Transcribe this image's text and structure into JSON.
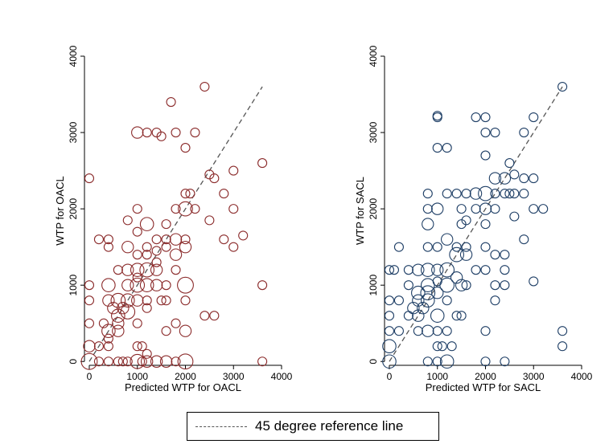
{
  "chart_data": [
    {
      "type": "scatter",
      "title": "",
      "xlabel": "Predicted WTP for OACL",
      "ylabel": "WTP for OACL",
      "xlim": [
        -100,
        4000
      ],
      "ylim": [
        -50,
        4000
      ],
      "xticks": [
        "0",
        "1000",
        "2000",
        "3000",
        "4000"
      ],
      "yticks": [
        "0",
        "1000",
        "2000",
        "3000",
        "4000"
      ],
      "marker": "hollow-circle-weighted",
      "color": "#8b2b2b",
      "grid": false,
      "reference_line": {
        "from": [
          0,
          0
        ],
        "to": [
          3600,
          3600
        ],
        "style": "dashed"
      },
      "points": [
        {
          "x": 0,
          "y": 2400,
          "r": 1
        },
        {
          "x": 1000,
          "y": 3000,
          "r": 1.3
        },
        {
          "x": 1200,
          "y": 3000,
          "r": 1
        },
        {
          "x": 1400,
          "y": 3000,
          "r": 1
        },
        {
          "x": 1500,
          "y": 2950,
          "r": 1
        },
        {
          "x": 1800,
          "y": 3000,
          "r": 1
        },
        {
          "x": 2200,
          "y": 3000,
          "r": 1
        },
        {
          "x": 1700,
          "y": 3400,
          "r": 1
        },
        {
          "x": 2400,
          "y": 3600,
          "r": 1
        },
        {
          "x": 3600,
          "y": 2600,
          "r": 1
        },
        {
          "x": 3000,
          "y": 2500,
          "r": 1
        },
        {
          "x": 2000,
          "y": 2800,
          "r": 1
        },
        {
          "x": 2600,
          "y": 2400,
          "r": 1
        },
        {
          "x": 2500,
          "y": 2450,
          "r": 1
        },
        {
          "x": 2000,
          "y": 2200,
          "r": 1
        },
        {
          "x": 2100,
          "y": 2200,
          "r": 1
        },
        {
          "x": 2800,
          "y": 2200,
          "r": 1
        },
        {
          "x": 1000,
          "y": 2000,
          "r": 1
        },
        {
          "x": 2000,
          "y": 2000,
          "r": 1.6
        },
        {
          "x": 1800,
          "y": 2000,
          "r": 1
        },
        {
          "x": 2200,
          "y": 2000,
          "r": 1
        },
        {
          "x": 3000,
          "y": 2000,
          "r": 1
        },
        {
          "x": 800,
          "y": 1850,
          "r": 1
        },
        {
          "x": 1200,
          "y": 1800,
          "r": 1.5
        },
        {
          "x": 1600,
          "y": 1800,
          "r": 1
        },
        {
          "x": 2500,
          "y": 1850,
          "r": 1
        },
        {
          "x": 1000,
          "y": 1700,
          "r": 1
        },
        {
          "x": 1400,
          "y": 1600,
          "r": 1
        },
        {
          "x": 1600,
          "y": 1600,
          "r": 1
        },
        {
          "x": 1800,
          "y": 1600,
          "r": 1.3
        },
        {
          "x": 2000,
          "y": 1600,
          "r": 1
        },
        {
          "x": 2800,
          "y": 1600,
          "r": 1
        },
        {
          "x": 3200,
          "y": 1650,
          "r": 1
        },
        {
          "x": 200,
          "y": 1600,
          "r": 1
        },
        {
          "x": 400,
          "y": 1600,
          "r": 1
        },
        {
          "x": 800,
          "y": 1500,
          "r": 1.3
        },
        {
          "x": 1200,
          "y": 1500,
          "r": 1
        },
        {
          "x": 1400,
          "y": 1450,
          "r": 1
        },
        {
          "x": 1600,
          "y": 1500,
          "r": 1
        },
        {
          "x": 2000,
          "y": 1500,
          "r": 1.3
        },
        {
          "x": 3000,
          "y": 1500,
          "r": 1
        },
        {
          "x": 400,
          "y": 1500,
          "r": 1
        },
        {
          "x": 1000,
          "y": 1400,
          "r": 1
        },
        {
          "x": 1200,
          "y": 1400,
          "r": 1
        },
        {
          "x": 1400,
          "y": 1300,
          "r": 1
        },
        {
          "x": 1800,
          "y": 1400,
          "r": 1.3
        },
        {
          "x": 600,
          "y": 1200,
          "r": 1
        },
        {
          "x": 800,
          "y": 1200,
          "r": 1.3
        },
        {
          "x": 1000,
          "y": 1200,
          "r": 1.5
        },
        {
          "x": 1200,
          "y": 1200,
          "r": 1.6
        },
        {
          "x": 1400,
          "y": 1200,
          "r": 1.3
        },
        {
          "x": 1800,
          "y": 1200,
          "r": 1
        },
        {
          "x": 1000,
          "y": 1100,
          "r": 1
        },
        {
          "x": 800,
          "y": 1000,
          "r": 1.3
        },
        {
          "x": 1000,
          "y": 1000,
          "r": 1.6
        },
        {
          "x": 1200,
          "y": 1000,
          "r": 1.5
        },
        {
          "x": 1400,
          "y": 1000,
          "r": 1.3
        },
        {
          "x": 2000,
          "y": 1000,
          "r": 1.8
        },
        {
          "x": 3600,
          "y": 1000,
          "r": 1
        },
        {
          "x": 0,
          "y": 1000,
          "r": 1
        },
        {
          "x": 400,
          "y": 1000,
          "r": 1.5
        },
        {
          "x": 1600,
          "y": 1000,
          "r": 1
        },
        {
          "x": 400,
          "y": 800,
          "r": 1.3
        },
        {
          "x": 600,
          "y": 800,
          "r": 1.6
        },
        {
          "x": 800,
          "y": 800,
          "r": 1.5
        },
        {
          "x": 1000,
          "y": 800,
          "r": 1.3
        },
        {
          "x": 1200,
          "y": 800,
          "r": 1
        },
        {
          "x": 1500,
          "y": 800,
          "r": 1
        },
        {
          "x": 1600,
          "y": 800,
          "r": 1
        },
        {
          "x": 2000,
          "y": 800,
          "r": 1
        },
        {
          "x": 0,
          "y": 800,
          "r": 1
        },
        {
          "x": 500,
          "y": 700,
          "r": 1.3
        },
        {
          "x": 700,
          "y": 700,
          "r": 1.3
        },
        {
          "x": 800,
          "y": 650,
          "r": 1.6
        },
        {
          "x": 1200,
          "y": 700,
          "r": 1
        },
        {
          "x": 600,
          "y": 600,
          "r": 1.5
        },
        {
          "x": 2400,
          "y": 600,
          "r": 1
        },
        {
          "x": 2600,
          "y": 600,
          "r": 1
        },
        {
          "x": 300,
          "y": 500,
          "r": 1
        },
        {
          "x": 600,
          "y": 500,
          "r": 1.3
        },
        {
          "x": 1000,
          "y": 500,
          "r": 1
        },
        {
          "x": 1800,
          "y": 500,
          "r": 1
        },
        {
          "x": 0,
          "y": 500,
          "r": 1
        },
        {
          "x": 400,
          "y": 400,
          "r": 1.5
        },
        {
          "x": 600,
          "y": 400,
          "r": 1.3
        },
        {
          "x": 2000,
          "y": 400,
          "r": 1.3
        },
        {
          "x": 1600,
          "y": 400,
          "r": 1
        },
        {
          "x": 400,
          "y": 300,
          "r": 1
        },
        {
          "x": 200,
          "y": 200,
          "r": 1
        },
        {
          "x": 1000,
          "y": 200,
          "r": 1
        },
        {
          "x": 1100,
          "y": 200,
          "r": 1
        },
        {
          "x": 400,
          "y": 200,
          "r": 1
        },
        {
          "x": 0,
          "y": 200,
          "r": 1.3
        },
        {
          "x": 1200,
          "y": 100,
          "r": 1
        },
        {
          "x": 0,
          "y": 0,
          "r": 1.8
        },
        {
          "x": 200,
          "y": 0,
          "r": 1
        },
        {
          "x": 400,
          "y": 0,
          "r": 1
        },
        {
          "x": 600,
          "y": 0,
          "r": 1
        },
        {
          "x": 800,
          "y": 0,
          "r": 1
        },
        {
          "x": 1000,
          "y": 0,
          "r": 1.6
        },
        {
          "x": 1200,
          "y": 0,
          "r": 1.3
        },
        {
          "x": 1400,
          "y": 0,
          "r": 1.3
        },
        {
          "x": 1600,
          "y": 0,
          "r": 1.3
        },
        {
          "x": 1800,
          "y": 0,
          "r": 1
        },
        {
          "x": 2000,
          "y": 0,
          "r": 1.7
        },
        {
          "x": 3600,
          "y": 0,
          "r": 1
        },
        {
          "x": 700,
          "y": 0,
          "r": 1
        },
        {
          "x": 1100,
          "y": 0,
          "r": 1
        }
      ]
    },
    {
      "type": "scatter",
      "title": "",
      "xlabel": "Predicted WTP for SACL",
      "ylabel": "WTP for SACL",
      "xlim": [
        -100,
        4000
      ],
      "ylim": [
        -50,
        4000
      ],
      "xticks": [
        "0",
        "1000",
        "2000",
        "3000",
        "4000"
      ],
      "yticks": [
        "0",
        "1000",
        "2000",
        "3000",
        "4000"
      ],
      "marker": "hollow-circle-weighted",
      "color": "#1f3f66",
      "grid": false,
      "reference_line": {
        "from": [
          0,
          0
        ],
        "to": [
          3600,
          3600
        ],
        "style": "dashed"
      },
      "points": [
        {
          "x": 1000,
          "y": 3200,
          "r": 1
        },
        {
          "x": 1000,
          "y": 3220,
          "r": 1
        },
        {
          "x": 1800,
          "y": 3200,
          "r": 1
        },
        {
          "x": 2000,
          "y": 3200,
          "r": 1
        },
        {
          "x": 3000,
          "y": 3200,
          "r": 1
        },
        {
          "x": 3600,
          "y": 3600,
          "r": 1
        },
        {
          "x": 2000,
          "y": 3000,
          "r": 1
        },
        {
          "x": 2200,
          "y": 3000,
          "r": 1
        },
        {
          "x": 2800,
          "y": 3000,
          "r": 1
        },
        {
          "x": 1000,
          "y": 2800,
          "r": 1
        },
        {
          "x": 1200,
          "y": 2800,
          "r": 1
        },
        {
          "x": 2000,
          "y": 2700,
          "r": 1
        },
        {
          "x": 2500,
          "y": 2600,
          "r": 1
        },
        {
          "x": 2200,
          "y": 2400,
          "r": 1.3
        },
        {
          "x": 2400,
          "y": 2400,
          "r": 1.3
        },
        {
          "x": 2600,
          "y": 2450,
          "r": 1
        },
        {
          "x": 2800,
          "y": 2400,
          "r": 1
        },
        {
          "x": 3000,
          "y": 2400,
          "r": 1
        },
        {
          "x": 800,
          "y": 2200,
          "r": 1
        },
        {
          "x": 1200,
          "y": 2200,
          "r": 1
        },
        {
          "x": 1400,
          "y": 2200,
          "r": 1
        },
        {
          "x": 1600,
          "y": 2200,
          "r": 1
        },
        {
          "x": 1800,
          "y": 2200,
          "r": 1.3
        },
        {
          "x": 2000,
          "y": 2200,
          "r": 1.6
        },
        {
          "x": 2200,
          "y": 2200,
          "r": 1
        },
        {
          "x": 2400,
          "y": 2200,
          "r": 1
        },
        {
          "x": 2500,
          "y": 2200,
          "r": 1
        },
        {
          "x": 2600,
          "y": 2200,
          "r": 1
        },
        {
          "x": 2800,
          "y": 2200,
          "r": 1
        },
        {
          "x": 1000,
          "y": 2000,
          "r": 1.3
        },
        {
          "x": 1500,
          "y": 2000,
          "r": 1
        },
        {
          "x": 1800,
          "y": 2000,
          "r": 1
        },
        {
          "x": 2000,
          "y": 2000,
          "r": 1.3
        },
        {
          "x": 2200,
          "y": 2000,
          "r": 1
        },
        {
          "x": 3000,
          "y": 2000,
          "r": 1
        },
        {
          "x": 3200,
          "y": 2000,
          "r": 1
        },
        {
          "x": 800,
          "y": 2000,
          "r": 1
        },
        {
          "x": 800,
          "y": 1800,
          "r": 1.3
        },
        {
          "x": 1500,
          "y": 1800,
          "r": 1
        },
        {
          "x": 1600,
          "y": 1850,
          "r": 1
        },
        {
          "x": 2000,
          "y": 1800,
          "r": 1
        },
        {
          "x": 2600,
          "y": 1900,
          "r": 1
        },
        {
          "x": 200,
          "y": 1500,
          "r": 1
        },
        {
          "x": 800,
          "y": 1500,
          "r": 1
        },
        {
          "x": 1000,
          "y": 1500,
          "r": 1
        },
        {
          "x": 1200,
          "y": 1600,
          "r": 1.3
        },
        {
          "x": 1400,
          "y": 1500,
          "r": 1
        },
        {
          "x": 1600,
          "y": 1500,
          "r": 1
        },
        {
          "x": 2000,
          "y": 1500,
          "r": 1
        },
        {
          "x": 2800,
          "y": 1600,
          "r": 1
        },
        {
          "x": 1400,
          "y": 1400,
          "r": 1.6
        },
        {
          "x": 1600,
          "y": 1400,
          "r": 1.3
        },
        {
          "x": 2200,
          "y": 1400,
          "r": 1
        },
        {
          "x": 2400,
          "y": 1400,
          "r": 1
        },
        {
          "x": 0,
          "y": 1200,
          "r": 1
        },
        {
          "x": 100,
          "y": 1200,
          "r": 1
        },
        {
          "x": 400,
          "y": 1200,
          "r": 1
        },
        {
          "x": 600,
          "y": 1200,
          "r": 1.3
        },
        {
          "x": 800,
          "y": 1200,
          "r": 1.5
        },
        {
          "x": 1000,
          "y": 1200,
          "r": 1.3
        },
        {
          "x": 1200,
          "y": 1200,
          "r": 1.6
        },
        {
          "x": 1800,
          "y": 1200,
          "r": 1
        },
        {
          "x": 2000,
          "y": 1200,
          "r": 1
        },
        {
          "x": 2400,
          "y": 1200,
          "r": 1
        },
        {
          "x": 1400,
          "y": 1100,
          "r": 1.3
        },
        {
          "x": 1000,
          "y": 1050,
          "r": 1
        },
        {
          "x": 800,
          "y": 1000,
          "r": 1.5
        },
        {
          "x": 1200,
          "y": 1000,
          "r": 1.6
        },
        {
          "x": 1500,
          "y": 1000,
          "r": 1.3
        },
        {
          "x": 1600,
          "y": 1000,
          "r": 1
        },
        {
          "x": 2200,
          "y": 1000,
          "r": 1
        },
        {
          "x": 2400,
          "y": 1000,
          "r": 1
        },
        {
          "x": 3000,
          "y": 1050,
          "r": 1
        },
        {
          "x": 400,
          "y": 1000,
          "r": 1
        },
        {
          "x": 600,
          "y": 900,
          "r": 1.5
        },
        {
          "x": 800,
          "y": 900,
          "r": 1.6
        },
        {
          "x": 1000,
          "y": 900,
          "r": 1.3
        },
        {
          "x": 0,
          "y": 800,
          "r": 1
        },
        {
          "x": 200,
          "y": 800,
          "r": 1
        },
        {
          "x": 600,
          "y": 800,
          "r": 1.3
        },
        {
          "x": 800,
          "y": 800,
          "r": 1.5
        },
        {
          "x": 1200,
          "y": 800,
          "r": 1
        },
        {
          "x": 2200,
          "y": 800,
          "r": 1
        },
        {
          "x": 500,
          "y": 700,
          "r": 1.3
        },
        {
          "x": 700,
          "y": 700,
          "r": 1.3
        },
        {
          "x": 1000,
          "y": 600,
          "r": 1.5
        },
        {
          "x": 1400,
          "y": 600,
          "r": 1
        },
        {
          "x": 1500,
          "y": 600,
          "r": 1
        },
        {
          "x": 0,
          "y": 600,
          "r": 1
        },
        {
          "x": 400,
          "y": 600,
          "r": 1
        },
        {
          "x": 600,
          "y": 600,
          "r": 1.3
        },
        {
          "x": 200,
          "y": 400,
          "r": 1
        },
        {
          "x": 800,
          "y": 400,
          "r": 1.3
        },
        {
          "x": 1000,
          "y": 400,
          "r": 1
        },
        {
          "x": 1200,
          "y": 400,
          "r": 1
        },
        {
          "x": 2000,
          "y": 400,
          "r": 1
        },
        {
          "x": 3600,
          "y": 400,
          "r": 1
        },
        {
          "x": 0,
          "y": 400,
          "r": 1
        },
        {
          "x": 600,
          "y": 400,
          "r": 1
        },
        {
          "x": 0,
          "y": 200,
          "r": 1.5
        },
        {
          "x": 1000,
          "y": 200,
          "r": 1
        },
        {
          "x": 1100,
          "y": 200,
          "r": 1
        },
        {
          "x": 1300,
          "y": 200,
          "r": 1
        },
        {
          "x": 3600,
          "y": 200,
          "r": 1
        },
        {
          "x": 800,
          "y": 0,
          "r": 1
        },
        {
          "x": 1000,
          "y": 0,
          "r": 1
        },
        {
          "x": 1200,
          "y": 0,
          "r": 1.5
        },
        {
          "x": 2000,
          "y": 0,
          "r": 1
        },
        {
          "x": 2400,
          "y": 0,
          "r": 1
        },
        {
          "x": 0,
          "y": 0,
          "r": 1.5
        }
      ]
    }
  ],
  "legend": {
    "label": "45 degree reference line",
    "line_color": "#555555",
    "placement": "bottom-center"
  }
}
